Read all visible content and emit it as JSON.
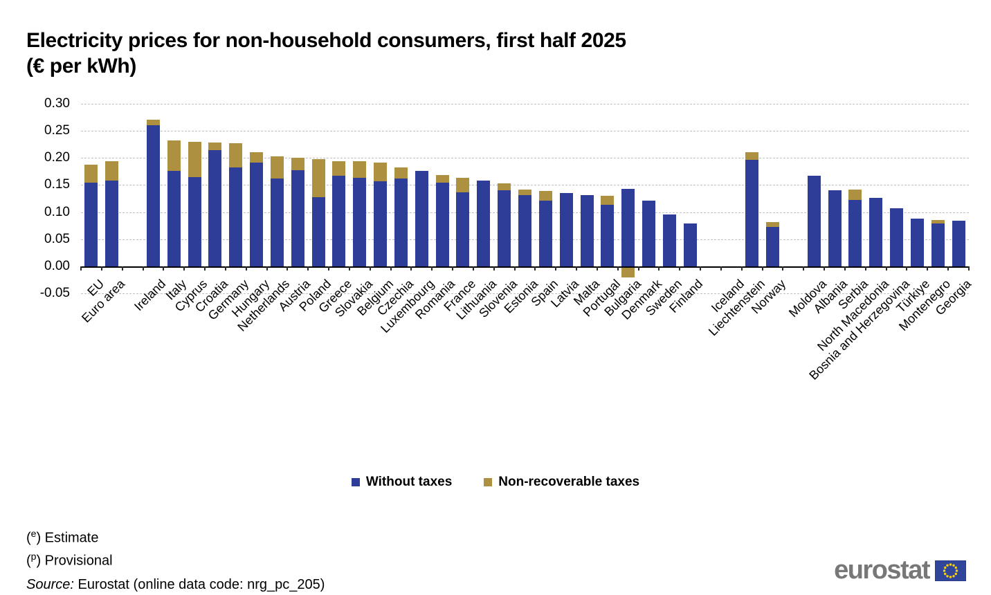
{
  "title": {
    "line1": "Electricity prices for non-household consumers, first half 2025",
    "line2": "(€ per kWh)"
  },
  "chart_data": {
    "type": "bar",
    "subtype": "stacked",
    "unit": "€ per kWh",
    "ylim": [
      -0.05,
      0.3
    ],
    "yticks": [
      0.3,
      0.25,
      0.2,
      0.15,
      0.1,
      0.05,
      0.0,
      -0.05
    ],
    "grid": "horizontal-dashed",
    "legend_position": "bottom-center",
    "categories": [
      "EU",
      "Euro area",
      "Ireland",
      "Italy",
      "Cyprus",
      "Croatia",
      "Germany",
      "Hungary",
      "Netherlands",
      "Austria",
      "Poland",
      "Greece",
      "Slovakia",
      "Belgium",
      "Czechia",
      "Luxembourg",
      "Romania",
      "France",
      "Lithuania",
      "Slovenia",
      "Estonia",
      "Spain",
      "Latvia",
      "Malta",
      "Portugal",
      "Bulgaria",
      "Denmark",
      "Sweden",
      "Finland",
      "Iceland",
      "Liechtenstein",
      "Norway",
      "Moldova",
      "Albania",
      "Serbia",
      "North Macedonia",
      "Bosnia and Herzegovina",
      "Türkiye",
      "Montenegro",
      "Georgia"
    ],
    "group_gaps_after_index": [
      1,
      28,
      31
    ],
    "no_data_categories": [
      "Iceland"
    ],
    "series": [
      {
        "name": "Without taxes",
        "color": "#2e3d98",
        "values": [
          0.154,
          0.158,
          0.261,
          0.176,
          0.164,
          0.215,
          0.182,
          0.191,
          0.162,
          0.177,
          0.128,
          0.167,
          0.163,
          0.157,
          0.162,
          0.176,
          0.154,
          0.136,
          0.158,
          0.14,
          0.131,
          0.121,
          0.135,
          0.132,
          0.113,
          0.143,
          0.121,
          0.095,
          0.079,
          null,
          0.196,
          0.073,
          0.167,
          0.14,
          0.123,
          0.126,
          0.107,
          0.088,
          0.079,
          0.084
        ]
      },
      {
        "name": "Non-recoverable taxes",
        "color": "#ad9140",
        "values": [
          0.033,
          0.036,
          0.009,
          0.056,
          0.066,
          0.014,
          0.045,
          0.02,
          0.041,
          0.023,
          0.07,
          0.027,
          0.031,
          0.035,
          0.02,
          0.0,
          0.015,
          0.027,
          0.0,
          0.013,
          0.01,
          0.018,
          0.0,
          0.0,
          0.017,
          -0.018,
          0.0,
          0.0,
          0.0,
          null,
          0.015,
          0.008,
          0.0,
          0.0,
          0.018,
          0.0,
          0.0,
          0.0,
          0.006,
          0.0
        ]
      }
    ]
  },
  "legend": {
    "items": [
      {
        "label": "Without taxes",
        "color": "#2e3d98"
      },
      {
        "label": "Non-recoverable taxes",
        "color": "#ad9140"
      }
    ]
  },
  "footnotes": [
    {
      "marker": "e",
      "text": ") Estimate"
    },
    {
      "marker": "p",
      "text": ") Provisional"
    }
  ],
  "source": {
    "prefix": "Source:",
    "text": " Eurostat (online data code: nrg_pc_205)"
  },
  "logo": {
    "text": "eurostat"
  },
  "colors": {
    "grid": "#bfbfbf",
    "axis": "#000000",
    "logo_gray": "#777778",
    "flag_blue": "#31459b",
    "flag_stars": "#f8d117"
  }
}
